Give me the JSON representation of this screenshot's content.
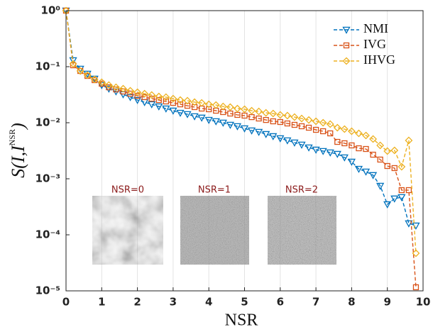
{
  "chart_data": {
    "type": "line",
    "xlabel": "NSR",
    "ylabel": "S(I,I^NSR)",
    "x": [
      0,
      0.2,
      0.4,
      0.6,
      0.8,
      1,
      1.2,
      1.4,
      1.6,
      1.8,
      2,
      2.2,
      2.4,
      2.6,
      2.8,
      3,
      3.2,
      3.4,
      3.6,
      3.8,
      4,
      4.2,
      4.4,
      4.6,
      4.8,
      5,
      5.2,
      5.4,
      5.6,
      5.8,
      6,
      6.2,
      6.4,
      6.6,
      6.8,
      7,
      7.2,
      7.4,
      7.6,
      7.8,
      8,
      8.2,
      8.4,
      8.6,
      8.8,
      9,
      9.2,
      9.4,
      9.6,
      9.8
    ],
    "series": [
      {
        "name": "NMI",
        "color": "#0072BD",
        "marker": "triangle-down",
        "values": [
          1,
          0.13,
          0.0916,
          0.0747,
          0.061,
          0.0469,
          0.0405,
          0.0361,
          0.0321,
          0.0286,
          0.0254,
          0.0233,
          0.0213,
          0.0195,
          0.0179,
          0.0164,
          0.015,
          0.0142,
          0.013,
          0.0123,
          0.0112,
          0.0106,
          0.01,
          0.00916,
          0.00865,
          0.00792,
          0.00726,
          0.00685,
          0.00627,
          0.00574,
          0.00527,
          0.00483,
          0.00442,
          0.00405,
          0.00361,
          0.0033,
          0.00312,
          0.00294,
          0.00277,
          0.0024,
          0.00201,
          0.0015,
          0.00134,
          0.00116,
          0.000747,
          0.00035,
          0.000443,
          0.000469,
          0.00016,
          0.000146
        ]
      },
      {
        "name": "IVG",
        "color": "#D95319",
        "marker": "square",
        "values": [
          1,
          0.106,
          0.0839,
          0.0684,
          0.0575,
          0.0497,
          0.0429,
          0.0393,
          0.0361,
          0.033,
          0.0303,
          0.0286,
          0.0269,
          0.0254,
          0.024,
          0.0226,
          0.0213,
          0.0201,
          0.019,
          0.0179,
          0.0174,
          0.0164,
          0.0155,
          0.0146,
          0.0138,
          0.0134,
          0.0126,
          0.0119,
          0.0112,
          0.0106,
          0.0103,
          0.00971,
          0.00916,
          0.00865,
          0.00815,
          0.00747,
          0.00705,
          0.00646,
          0.00455,
          0.0043,
          0.00394,
          0.0035,
          0.0034,
          0.00269,
          0.0022,
          0.00169,
          0.00155,
          0.000627,
          0.000627,
          1.16e-05
        ]
      },
      {
        "name": "IHVG",
        "color": "#EDB120",
        "marker": "diamond",
        "values": [
          1,
          0.1124,
          0.0839,
          0.0705,
          0.0592,
          0.0527,
          0.0469,
          0.0429,
          0.0405,
          0.0372,
          0.035,
          0.033,
          0.0312,
          0.0294,
          0.0286,
          0.0269,
          0.0254,
          0.0247,
          0.0233,
          0.0226,
          0.0213,
          0.0207,
          0.0195,
          0.019,
          0.0179,
          0.0174,
          0.0164,
          0.0159,
          0.015,
          0.0146,
          0.0138,
          0.0134,
          0.0126,
          0.0119,
          0.0112,
          0.0106,
          0.01,
          0.00944,
          0.00815,
          0.00769,
          0.00705,
          0.00646,
          0.00592,
          0.00512,
          0.00394,
          0.00312,
          0.00321,
          0.00164,
          0.00483,
          4.69e-05
        ]
      }
    ],
    "xlim": [
      0,
      10
    ],
    "xticks": [
      0,
      1,
      2,
      3,
      4,
      5,
      6,
      7,
      8,
      9,
      10
    ],
    "ylim": [
      1e-05,
      1
    ],
    "log_y": true,
    "yticks": [
      {
        "value": 1e-05,
        "label": "10⁻⁵"
      },
      {
        "value": 0.0001,
        "label": "10⁻⁴"
      },
      {
        "value": 0.001,
        "label": "10⁻³"
      },
      {
        "value": 0.01,
        "label": "10⁻²"
      },
      {
        "value": 0.1,
        "label": "10⁻¹"
      },
      {
        "value": 1,
        "label": "10⁰"
      }
    ],
    "grid_x": true,
    "legend": "upper right",
    "annotations": [
      "NSR=0",
      "NSR=1",
      "NSR=2"
    ]
  }
}
